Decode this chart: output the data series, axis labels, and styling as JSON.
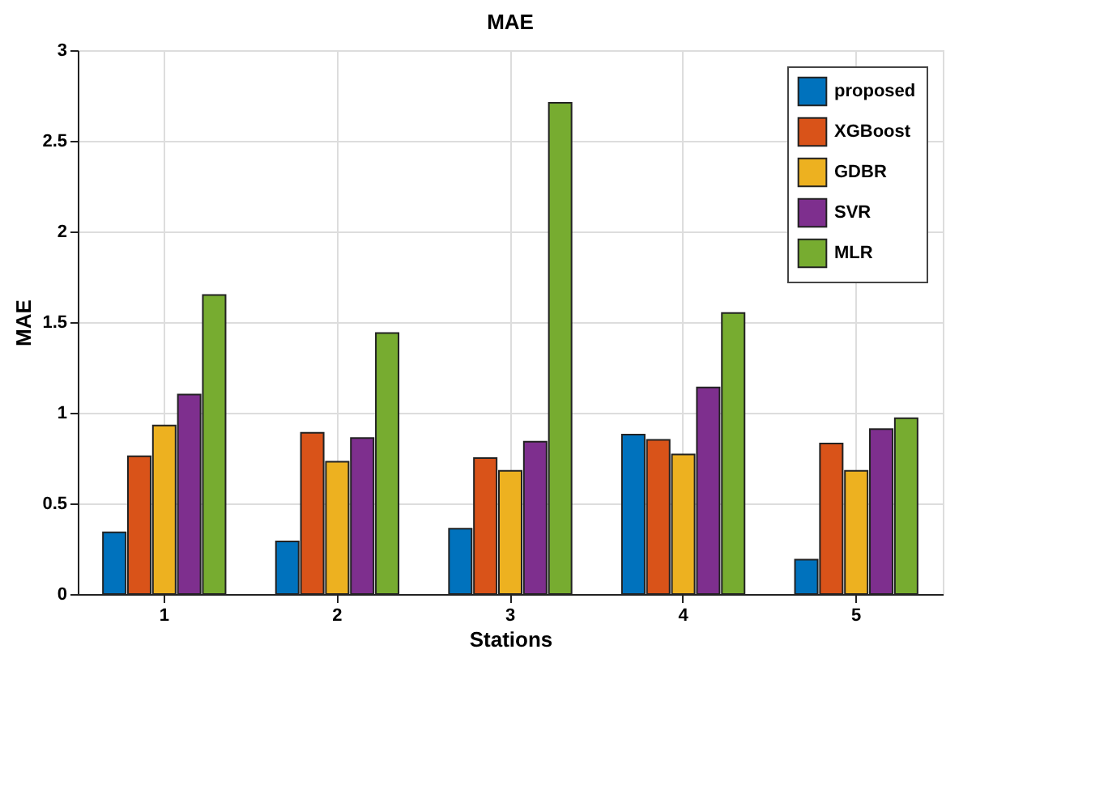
{
  "chart_data": {
    "type": "bar",
    "title": "MAE",
    "xlabel": "Stations",
    "ylabel": "MAE",
    "categories": [
      "1",
      "2",
      "3",
      "4",
      "5"
    ],
    "series": [
      {
        "name": "proposed",
        "color": "#0072bd",
        "values": [
          0.34,
          0.29,
          0.36,
          0.88,
          0.19
        ]
      },
      {
        "name": "XGBoost",
        "color": "#d95319",
        "values": [
          0.76,
          0.89,
          0.75,
          0.85,
          0.83
        ]
      },
      {
        "name": "GDBR",
        "color": "#edb120",
        "values": [
          0.93,
          0.73,
          0.68,
          0.77,
          0.68
        ]
      },
      {
        "name": "SVR",
        "color": "#7e2f8e",
        "values": [
          1.1,
          0.86,
          0.84,
          1.14,
          0.91
        ]
      },
      {
        "name": "MLR",
        "color": "#77ac30",
        "values": [
          1.65,
          1.44,
          2.71,
          1.55,
          0.97
        ]
      }
    ],
    "ylim": [
      0,
      3
    ],
    "yticks": [
      0,
      0.5,
      1,
      1.5,
      2,
      2.5,
      3
    ],
    "grid": true,
    "legend": "top right"
  }
}
